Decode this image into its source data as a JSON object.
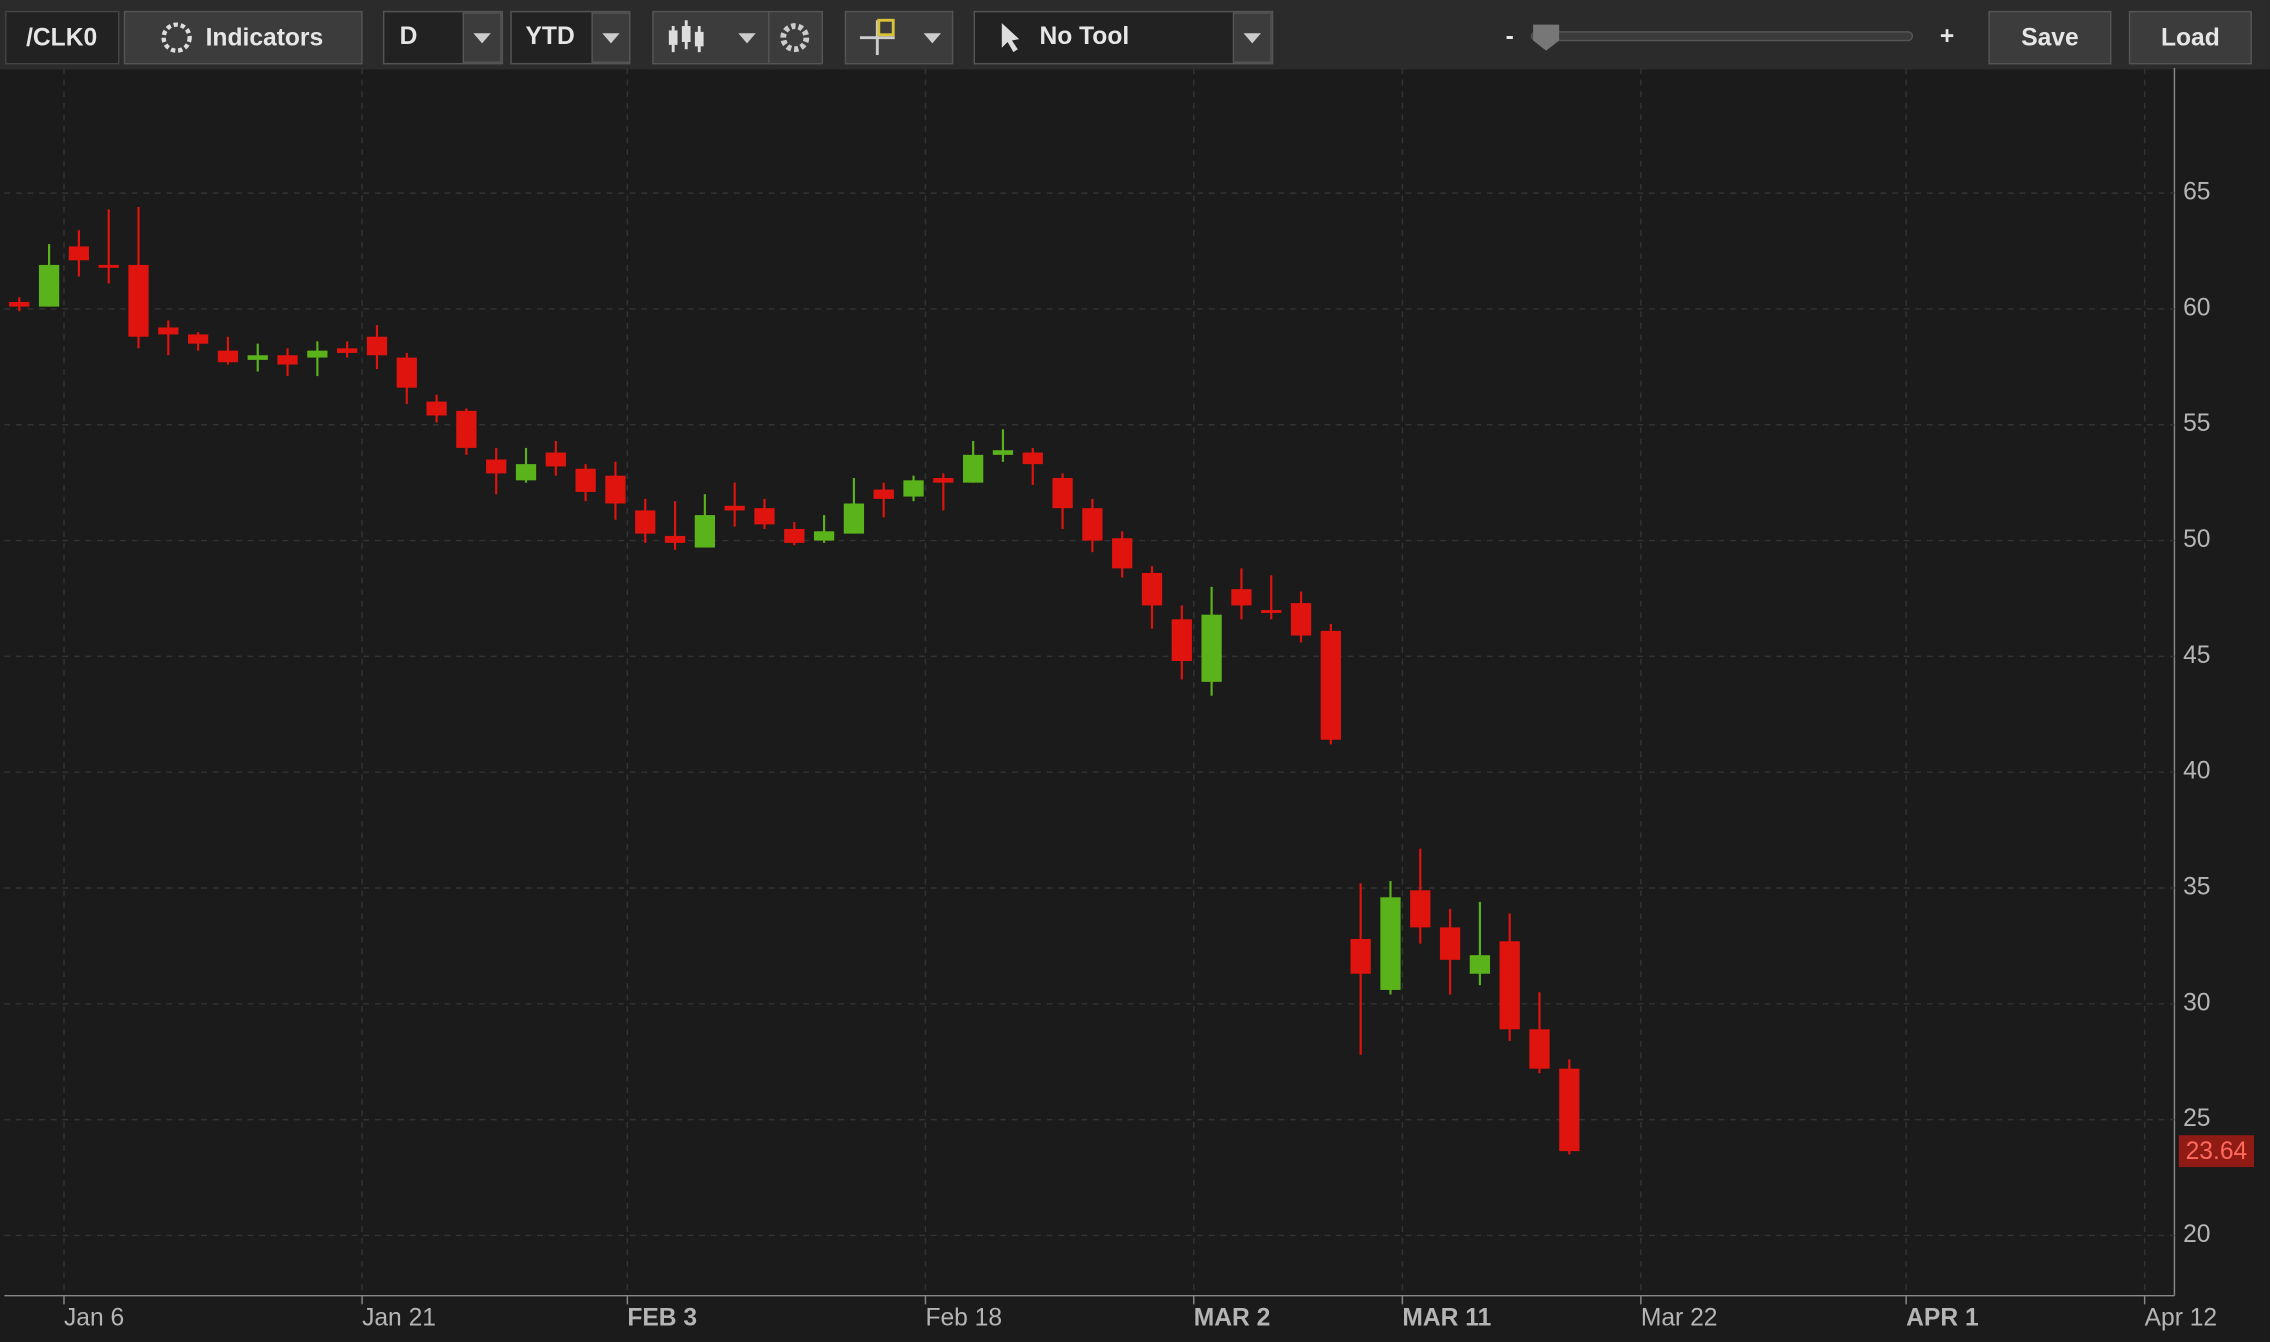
{
  "toolbar": {
    "symbol": "/CLK0",
    "indicators": "Indicators",
    "aggregation": "D",
    "range": "YTD",
    "tool": "No Tool",
    "zoom_out": "-",
    "zoom_in": "+",
    "save": "Save",
    "load": "Load"
  },
  "chart_data": {
    "type": "candlestick",
    "x": [
      0,
      1,
      2,
      3,
      4,
      5,
      6,
      7,
      8,
      9,
      10,
      11,
      12,
      13,
      14,
      15,
      16,
      17,
      18,
      19,
      20,
      21,
      22,
      23,
      24,
      25,
      26,
      27,
      28,
      29,
      30,
      31,
      32,
      33,
      34,
      35,
      36,
      37,
      38,
      39,
      40,
      41,
      42,
      43,
      44,
      45,
      46,
      47,
      48,
      49,
      50,
      51,
      52
    ],
    "open": [
      60.3,
      60.1,
      62.7,
      61.9,
      61.9,
      59.2,
      58.9,
      58.2,
      57.8,
      58.0,
      57.9,
      58.3,
      58.8,
      57.9,
      56.0,
      55.6,
      53.5,
      52.6,
      53.8,
      53.1,
      52.8,
      51.3,
      50.2,
      49.7,
      51.5,
      51.4,
      50.5,
      50.0,
      50.3,
      52.2,
      51.9,
      52.7,
      52.5,
      53.7,
      53.8,
      52.7,
      51.4,
      50.1,
      48.6,
      46.6,
      43.9,
      47.9,
      47.0,
      47.3,
      46.1,
      32.8,
      30.6,
      34.9,
      33.3,
      31.3,
      32.7,
      28.9,
      27.2
    ],
    "high": [
      60.5,
      62.8,
      63.4,
      64.3,
      64.4,
      59.5,
      59.0,
      58.8,
      58.5,
      58.3,
      58.6,
      58.6,
      59.3,
      58.1,
      56.3,
      55.7,
      54.0,
      54.0,
      54.3,
      53.3,
      53.4,
      51.8,
      51.7,
      52.0,
      52.5,
      51.8,
      50.8,
      51.1,
      52.7,
      52.5,
      52.8,
      52.9,
      54.3,
      54.8,
      54.0,
      52.9,
      51.8,
      50.4,
      48.9,
      47.2,
      48.0,
      48.8,
      48.5,
      47.8,
      46.4,
      35.2,
      35.3,
      36.7,
      34.1,
      34.4,
      33.9,
      30.5,
      27.6
    ],
    "low": [
      59.9,
      60.1,
      61.4,
      61.1,
      58.3,
      58.0,
      58.2,
      57.6,
      57.3,
      57.1,
      57.1,
      57.9,
      57.4,
      55.9,
      55.1,
      53.7,
      52.0,
      52.5,
      52.8,
      51.7,
      50.9,
      49.9,
      49.6,
      49.7,
      50.6,
      50.5,
      49.8,
      49.9,
      50.3,
      51.0,
      51.7,
      51.3,
      52.5,
      53.4,
      52.4,
      50.5,
      49.5,
      48.4,
      46.2,
      44.0,
      43.3,
      46.6,
      46.6,
      45.6,
      41.2,
      27.8,
      30.4,
      32.6,
      30.4,
      30.8,
      28.4,
      27.0,
      23.5
    ],
    "close": [
      60.1,
      61.9,
      62.1,
      61.8,
      58.8,
      58.9,
      58.5,
      57.7,
      58.0,
      57.6,
      58.2,
      58.1,
      58.0,
      56.6,
      55.4,
      54.0,
      52.9,
      53.3,
      53.2,
      52.1,
      51.6,
      50.3,
      49.9,
      51.1,
      51.3,
      50.7,
      49.9,
      50.4,
      51.6,
      51.8,
      52.6,
      52.5,
      53.7,
      53.9,
      53.3,
      51.4,
      50.0,
      48.8,
      47.2,
      44.8,
      46.8,
      47.2,
      46.9,
      45.9,
      41.4,
      31.3,
      34.6,
      33.3,
      31.9,
      32.1,
      28.9,
      27.2,
      23.64
    ],
    "up_color": "#5bb31c",
    "down_color": "#e0140e",
    "last_price": 23.64,
    "xlim": [
      -0.5,
      72.3
    ],
    "xticks": [
      {
        "value": 1.5,
        "label": "Jan 6"
      },
      {
        "value": 11.5,
        "label": "Jan 21"
      },
      {
        "value": 20.4,
        "label": "FEB 3"
      },
      {
        "value": 30.4,
        "label": "Feb 18"
      },
      {
        "value": 39.4,
        "label": "MAR 2"
      },
      {
        "value": 46.4,
        "label": "MAR 11"
      },
      {
        "value": 54.4,
        "label": "Mar 22"
      },
      {
        "value": 63.3,
        "label": "APR 1"
      },
      {
        "value": 71.3,
        "label": "Apr 12"
      }
    ],
    "ylim": [
      17.4,
      70.4
    ],
    "yticks": [
      20,
      25,
      30,
      35,
      40,
      45,
      50,
      55,
      60,
      65
    ],
    "grid": true
  }
}
